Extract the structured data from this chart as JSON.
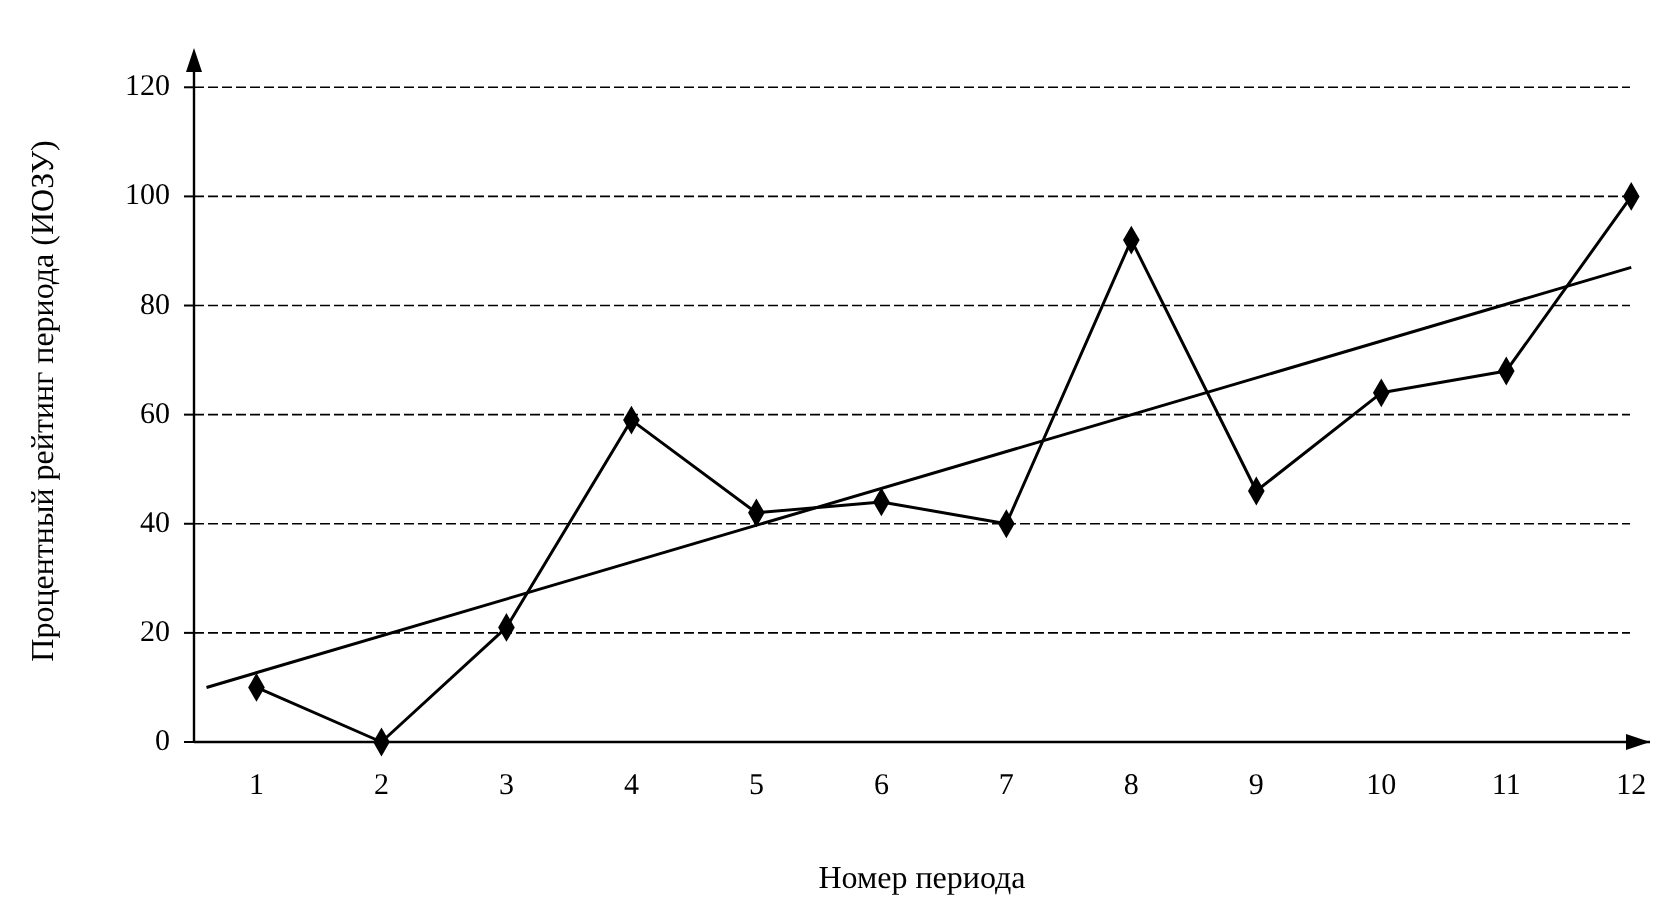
{
  "chart_data": {
    "type": "line",
    "xlabel": "Номер периода",
    "ylabel": "Процентный рейтинг периода (ИОЗУ)",
    "x": [
      1,
      2,
      3,
      4,
      5,
      6,
      7,
      8,
      9,
      10,
      11,
      12
    ],
    "series": [
      {
        "color": "#000000",
        "marker": "diamond",
        "values": [
          10,
          0,
          21,
          59,
          42,
          44,
          40,
          92,
          46,
          64,
          68,
          100
        ]
      },
      {
        "color": "#000000",
        "marker": "none",
        "x": [
          0.6,
          12
        ],
        "values": [
          10,
          87
        ]
      }
    ],
    "xlim": [
      0.5,
      12.15
    ],
    "xticks": [
      1,
      2,
      3,
      4,
      5,
      6,
      7,
      8,
      9,
      10,
      11,
      12
    ],
    "ylim": [
      0,
      125
    ],
    "yticks": [
      0,
      20,
      40,
      60,
      80,
      100,
      120
    ],
    "grid": "y"
  }
}
